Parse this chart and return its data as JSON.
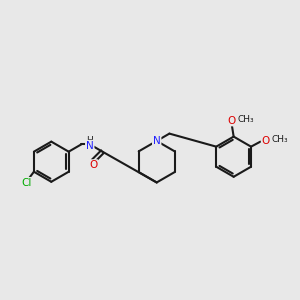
{
  "background_color": "#e8e8e8",
  "bond_color": "#1a1a1a",
  "bond_width": 1.5,
  "atom_colors": {
    "C": "#1a1a1a",
    "N": "#2020ff",
    "O": "#dd0000",
    "Cl": "#00aa00",
    "H": "#1a1a1a"
  },
  "font_size": 7.5
}
